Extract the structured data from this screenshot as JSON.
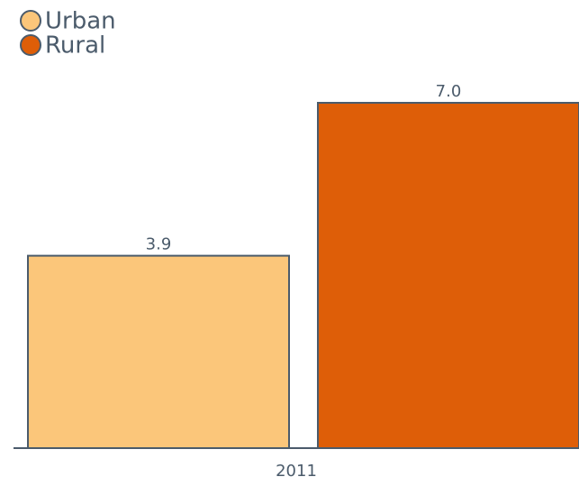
{
  "chart_data": {
    "type": "bar",
    "categories": [
      "2011"
    ],
    "series": [
      {
        "name": "Urban",
        "color": "#fbc67a",
        "values": [
          3.9
        ],
        "value_labels": [
          "3.9"
        ]
      },
      {
        "name": "Rural",
        "color": "#de5e08",
        "values": [
          7.0
        ],
        "value_labels": [
          "7.0"
        ]
      }
    ],
    "legend": "top-left"
  }
}
